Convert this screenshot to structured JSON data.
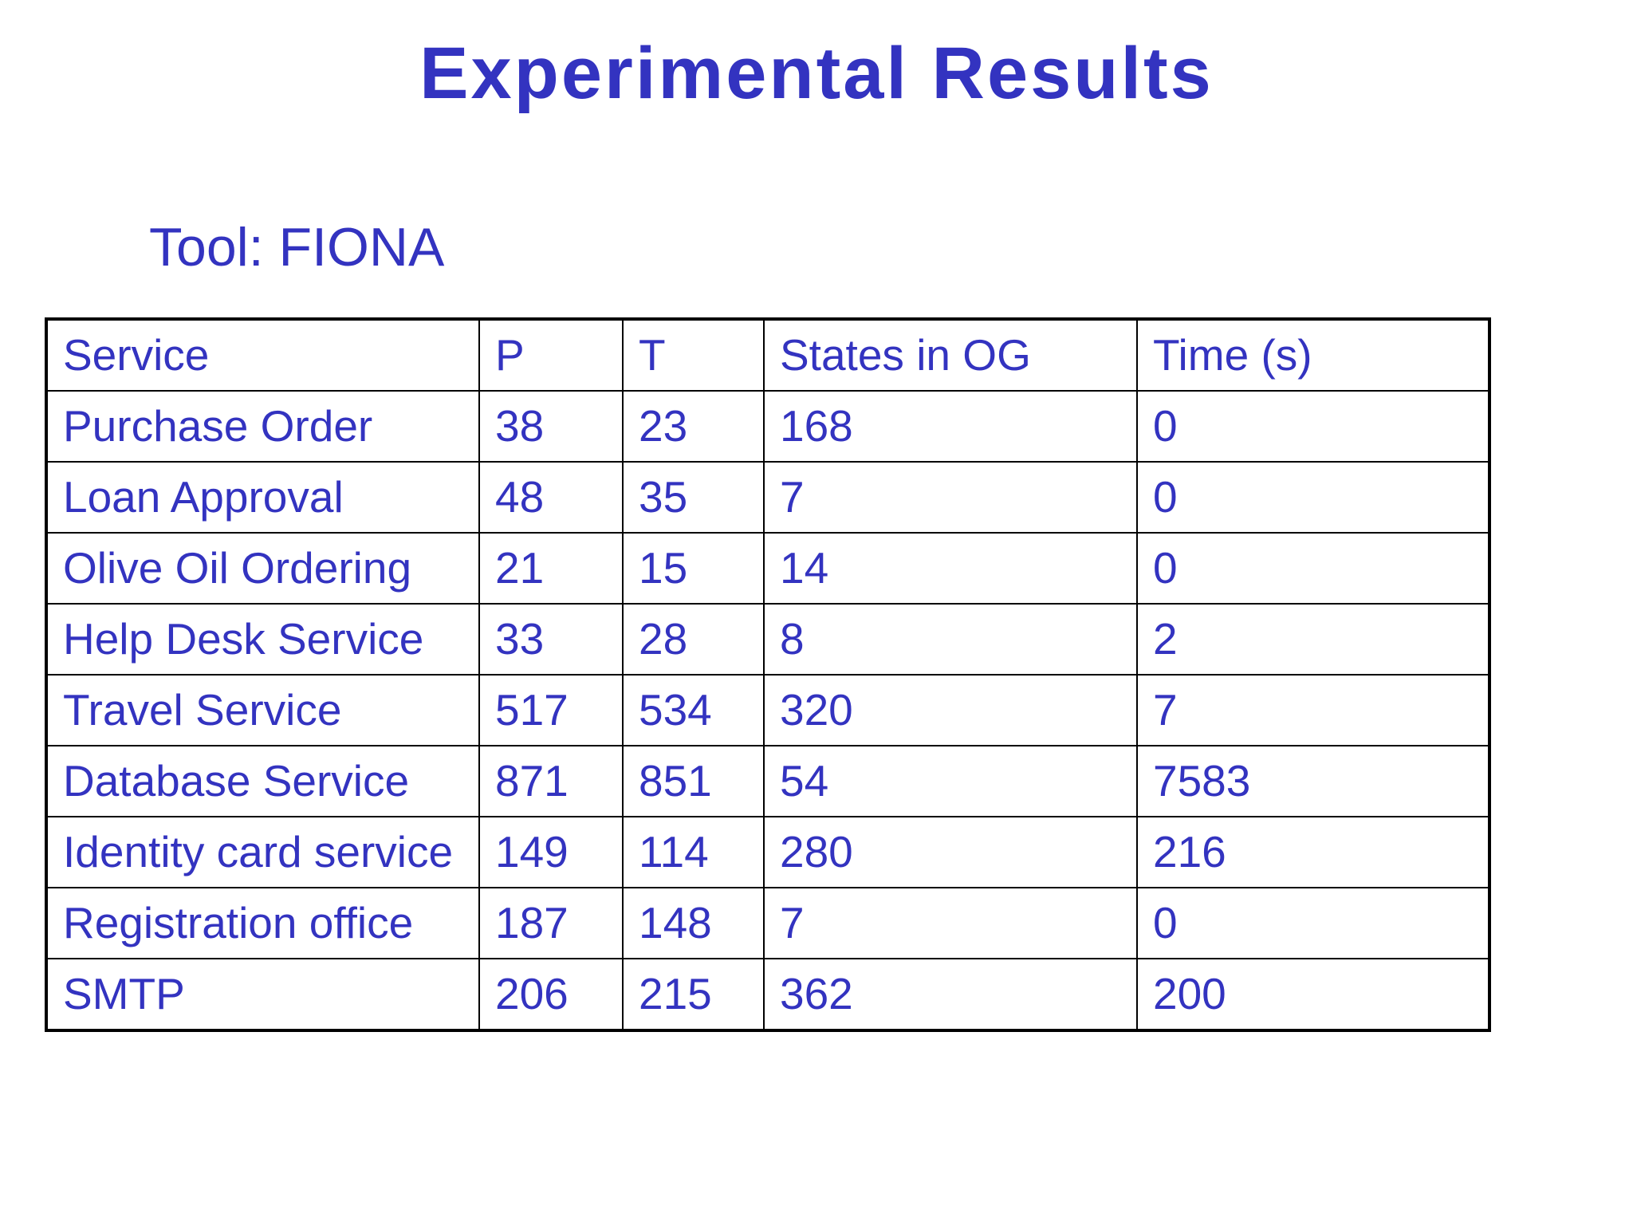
{
  "slide": {
    "title": "Experimental Results",
    "subtitle": "Tool: FIONA"
  },
  "table": {
    "headers": [
      "Service",
      "P",
      "T",
      "States in OG",
      "Time (s)"
    ],
    "rows": [
      [
        "Purchase Order",
        "38",
        "23",
        "168",
        "0"
      ],
      [
        "Loan Approval",
        "48",
        "35",
        "7",
        "0"
      ],
      [
        "Olive Oil Ordering",
        "21",
        "15",
        "14",
        "0"
      ],
      [
        "Help Desk Service",
        "33",
        "28",
        "8",
        "2"
      ],
      [
        "Travel Service",
        "517",
        "534",
        "320",
        "7"
      ],
      [
        "Database Service",
        "871",
        "851",
        "54",
        "7583"
      ],
      [
        "Identity card service",
        "149",
        "114",
        "280",
        "216"
      ],
      [
        "Registration office",
        "187",
        "148",
        "7",
        "0"
      ],
      [
        "SMTP",
        "206",
        "215",
        "362",
        "200"
      ]
    ]
  },
  "colors": {
    "text": "#3333c0",
    "border": "#000000",
    "background": "#ffffff"
  }
}
